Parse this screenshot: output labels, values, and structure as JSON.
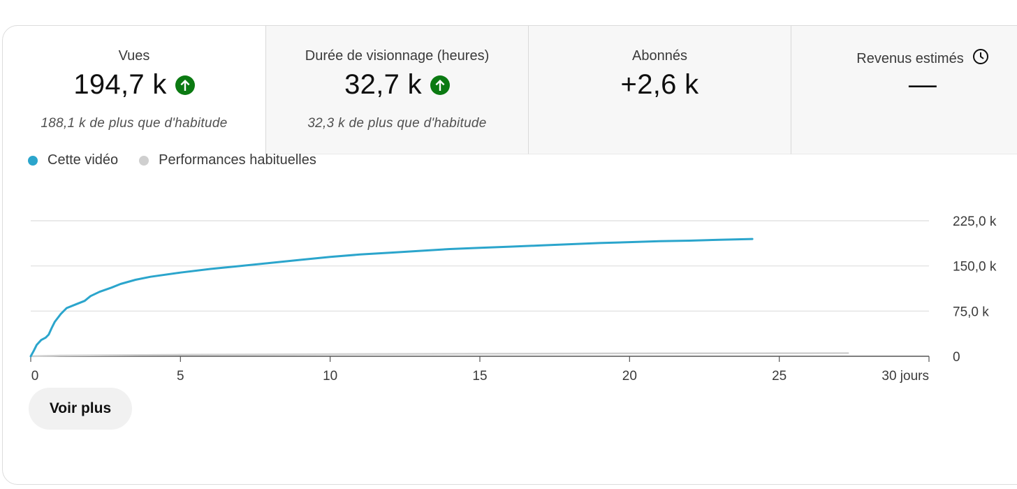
{
  "metrics": [
    {
      "title": "Vues",
      "value": "194,7 k",
      "trend": "up-arrow-icon",
      "sub": "188,1 k de plus que d'habitude"
    },
    {
      "title": "Durée de visionnage (heures)",
      "value": "32,7 k",
      "trend": "up-arrow-icon",
      "sub": "32,3 k de plus que d'habitude"
    },
    {
      "title": "Abonnés",
      "value": "+2,6 k"
    },
    {
      "title": "Revenus estimés",
      "value": "—",
      "icon": "clock-icon"
    }
  ],
  "colors": {
    "series_main": "#2ba5cc",
    "series_typical": "#cfcfcf",
    "trend_up": "#0b7a12",
    "grid": "#dedede",
    "axis": "#555555"
  },
  "legend": {
    "series1": "Cette vidéo",
    "series2": "Performances habituelles"
  },
  "chart_data": {
    "type": "line",
    "xlabel": "",
    "ylabel": "",
    "xlim": [
      0,
      30
    ],
    "ylim": [
      0,
      225000
    ],
    "x_ticks": [
      "0",
      "5",
      "10",
      "15",
      "20",
      "25",
      "30 jours"
    ],
    "y_ticks": [
      "0",
      "75,0 k",
      "150,0 k",
      "225,0 k"
    ],
    "series": [
      {
        "name": "Cette vidéo",
        "points": [
          [
            0,
            0
          ],
          [
            0.1,
            9000
          ],
          [
            0.2,
            19000
          ],
          [
            0.35,
            27000
          ],
          [
            0.5,
            31000
          ],
          [
            0.6,
            36000
          ],
          [
            0.7,
            47000
          ],
          [
            0.8,
            57000
          ],
          [
            1.0,
            70000
          ],
          [
            1.2,
            80000
          ],
          [
            1.5,
            86000
          ],
          [
            1.8,
            92000
          ],
          [
            2.0,
            100000
          ],
          [
            2.3,
            107000
          ],
          [
            2.7,
            114000
          ],
          [
            3.0,
            120000
          ],
          [
            3.5,
            127000
          ],
          [
            4.0,
            132000
          ],
          [
            5.0,
            139000
          ],
          [
            6.0,
            145000
          ],
          [
            7.0,
            150000
          ],
          [
            8.0,
            155000
          ],
          [
            9.0,
            160000
          ],
          [
            10.0,
            165000
          ],
          [
            11.0,
            169000
          ],
          [
            12.0,
            172000
          ],
          [
            13.0,
            175000
          ],
          [
            14.0,
            178000
          ],
          [
            15.0,
            180000
          ],
          [
            16.0,
            182000
          ],
          [
            17.0,
            184000
          ],
          [
            18.0,
            186000
          ],
          [
            19.0,
            188000
          ],
          [
            20.0,
            189500
          ],
          [
            21.0,
            191000
          ],
          [
            22.0,
            192000
          ],
          [
            23.0,
            193500
          ],
          [
            24.1,
            194700
          ]
        ]
      },
      {
        "name": "Performances habituelles",
        "points": [
          [
            0,
            0
          ],
          [
            1,
            1200
          ],
          [
            5,
            2500
          ],
          [
            10,
            3500
          ],
          [
            15,
            4200
          ],
          [
            20,
            4700
          ],
          [
            27.3,
            5200
          ]
        ]
      }
    ]
  },
  "see_more_label": "Voir plus"
}
